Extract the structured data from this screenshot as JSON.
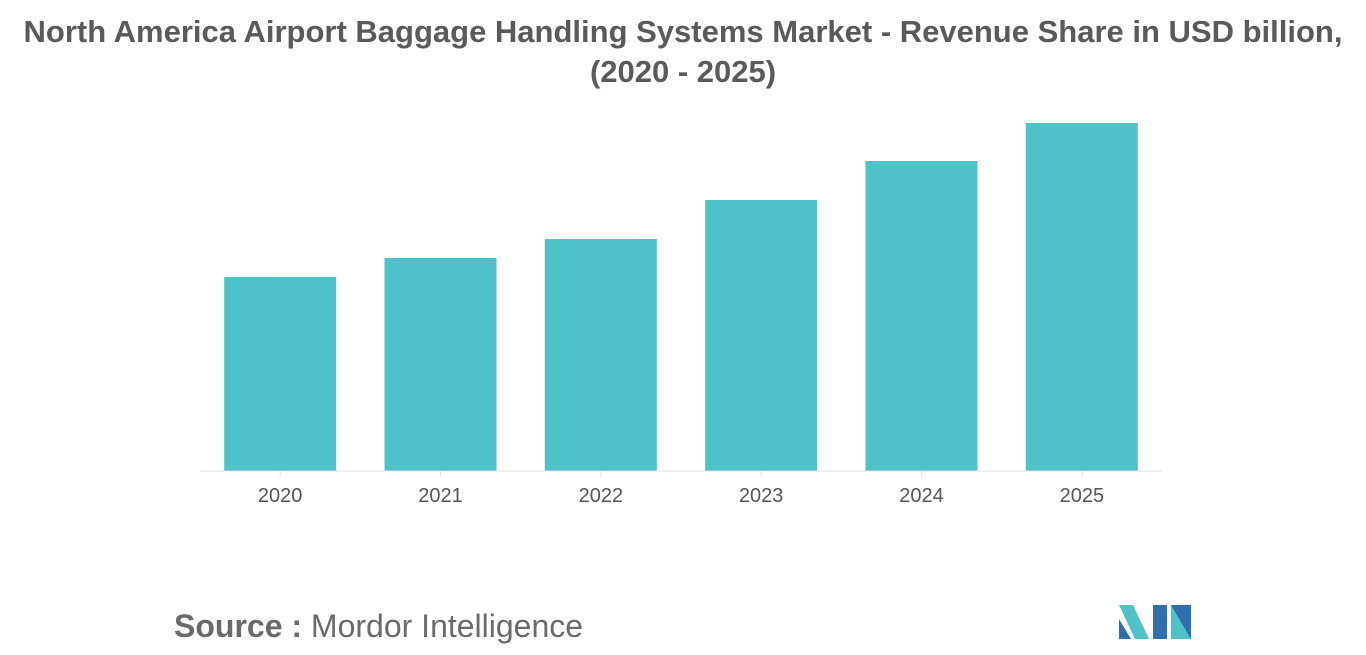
{
  "chart_data": {
    "type": "bar",
    "title": "North America Airport Baggage Handling Systems Market - Revenue Share in USD billion,",
    "subtitle": "(2020 - 2025)",
    "categories": [
      "2020",
      "2021",
      "2022",
      "2023",
      "2024",
      "2025"
    ],
    "values": [
      1.94,
      2.13,
      2.32,
      2.71,
      3.1,
      3.48
    ],
    "ylim": [
      0,
      3.48
    ],
    "grid": false,
    "legend": "none",
    "bar_color": "#4fc1c8",
    "axis_color": "#e2e2e2"
  },
  "source": {
    "label": "Source :",
    "text": "Mordor Intelligence"
  },
  "logo": {
    "icon": "mordor-intelligence-logo-icon",
    "colors": [
      "#2f6fae",
      "#4fc1c8"
    ]
  }
}
